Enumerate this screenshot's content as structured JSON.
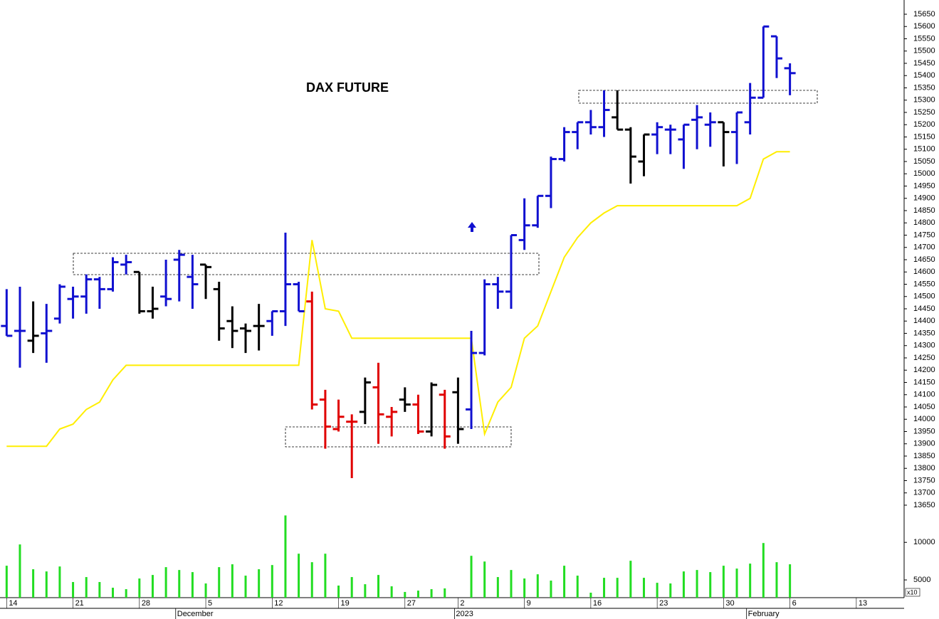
{
  "chart_data": {
    "type": "ohlc",
    "title": "DAX FUTURE",
    "xlim": [
      -0.5,
      67.6
    ],
    "xticks": [
      {
        "value": 0,
        "label": "14"
      },
      {
        "value": 5,
        "label": "21"
      },
      {
        "value": 10,
        "label": "28"
      },
      {
        "value": 15,
        "label": "5"
      },
      {
        "value": 20,
        "label": "12"
      },
      {
        "value": 25,
        "label": "19"
      },
      {
        "value": 30,
        "label": "27"
      },
      {
        "value": 34,
        "label": "2"
      },
      {
        "value": 39,
        "label": "9"
      },
      {
        "value": 44,
        "label": "16"
      },
      {
        "value": 49,
        "label": "23"
      },
      {
        "value": 54,
        "label": "30"
      },
      {
        "value": 59,
        "label": "6"
      },
      {
        "value": 64,
        "label": "13"
      }
    ],
    "months": [
      {
        "value": 13,
        "label": "December"
      },
      {
        "value": 34,
        "label": "2023"
      },
      {
        "value": 56,
        "label": "February"
      }
    ],
    "ylim": [
      13600,
      15700
    ],
    "yticks": [
      13650,
      13700,
      13750,
      13800,
      13850,
      13900,
      13950,
      14000,
      14050,
      14100,
      14150,
      14200,
      14250,
      14300,
      14350,
      14400,
      14450,
      14500,
      14550,
      14600,
      14650,
      14700,
      14750,
      14800,
      14850,
      14900,
      14950,
      15000,
      15050,
      15100,
      15150,
      15200,
      15250,
      15300,
      15350,
      15400,
      15450,
      15500,
      15550,
      15600,
      15650
    ],
    "open": [
      14380,
      14360,
      14320,
      14350,
      14410,
      14490,
      14500,
      14570,
      14530,
      14630,
      14600,
      14440,
      14500,
      14650,
      14580,
      14630,
      14530,
      14400,
      14370,
      14380,
      14400,
      14440,
      14550,
      14480,
      14080,
      13960,
      13990,
      14030,
      14130,
      14010,
      14080,
      14060,
      13950,
      14100,
      14110,
      14040,
      14270,
      14550,
      14520,
      14730,
      14790,
      14910,
      15060,
      15170,
      15210,
      15190,
      15230,
      15180,
      15050,
      15160,
      15180,
      15140,
      15220,
      15200,
      15210,
      15170,
      15210,
      15310,
      15560,
      15430
    ],
    "high": [
      14530,
      14540,
      14480,
      14470,
      14550,
      14540,
      14590,
      14580,
      14660,
      14670,
      14600,
      14540,
      14650,
      14690,
      14670,
      14630,
      14560,
      14460,
      14390,
      14470,
      14440,
      14760,
      14560,
      14520,
      14120,
      14080,
      14020,
      14170,
      14230,
      14050,
      14130,
      14100,
      14150,
      14120,
      14170,
      14360,
      14570,
      14580,
      14750,
      14900,
      14910,
      15070,
      15190,
      15210,
      15260,
      15340,
      15340,
      15190,
      15160,
      15210,
      15200,
      15200,
      15280,
      15250,
      15210,
      15250,
      15370,
      15600,
      15560,
      15450
    ],
    "low": [
      14340,
      14210,
      14270,
      14230,
      14390,
      14410,
      14430,
      14450,
      14520,
      14590,
      14430,
      14410,
      14460,
      14480,
      14450,
      14490,
      14320,
      14290,
      14270,
      14280,
      14340,
      14380,
      14440,
      14040,
      13880,
      13950,
      13760,
      13980,
      13900,
      13930,
      14030,
      13940,
      13930,
      13880,
      13900,
      13960,
      14260,
      14450,
      14450,
      14690,
      14780,
      14860,
      15050,
      15100,
      15160,
      15150,
      15180,
      14960,
      14990,
      15080,
      15080,
      15020,
      15100,
      15110,
      15030,
      15040,
      15160,
      15310,
      15390,
      15320
    ],
    "close": [
      14340,
      14360,
      14340,
      14360,
      14540,
      14500,
      14570,
      14530,
      14640,
      14640,
      14440,
      14450,
      14490,
      14670,
      14550,
      14620,
      14370,
      14360,
      14360,
      14380,
      14440,
      14550,
      14440,
      14060,
      13970,
      14010,
      13990,
      14150,
      14020,
      14030,
      14060,
      13950,
      14140,
      13930,
      13960,
      14270,
      14550,
      14520,
      14750,
      14790,
      14910,
      15060,
      15170,
      15210,
      15190,
      15260,
      15180,
      15070,
      15160,
      15190,
      15180,
      15200,
      15230,
      15210,
      15170,
      15250,
      15310,
      15600,
      15470,
      15410
    ],
    "bar_colors": [
      "#1010d0",
      "#1010d0",
      "#000000",
      "#1010d0",
      "#1010d0",
      "#1010d0",
      "#1010d0",
      "#1010d0",
      "#1010d0",
      "#1010d0",
      "#000000",
      "#000000",
      "#1010d0",
      "#1010d0",
      "#1010d0",
      "#000000",
      "#000000",
      "#000000",
      "#000000",
      "#000000",
      "#1010d0",
      "#1010d0",
      "#1010d0",
      "#e00000",
      "#e00000",
      "#e00000",
      "#e00000",
      "#000000",
      "#e00000",
      "#e00000",
      "#000000",
      "#e00000",
      "#000000",
      "#e00000",
      "#000000",
      "#1010d0",
      "#1010d0",
      "#1010d0",
      "#1010d0",
      "#1010d0",
      "#1010d0",
      "#1010d0",
      "#1010d0",
      "#1010d0",
      "#1010d0",
      "#1010d0",
      "#000000",
      "#000000",
      "#000000",
      "#1010d0",
      "#1010d0",
      "#1010d0",
      "#1010d0",
      "#1010d0",
      "#000000",
      "#1010d0",
      "#1010d0",
      "#1010d0",
      "#1010d0",
      "#1010d0"
    ],
    "line": {
      "color": "#ffee00",
      "values": [
        13890,
        13890,
        13890,
        13890,
        13960,
        13980,
        14040,
        14070,
        14160,
        14220,
        14220,
        14220,
        14220,
        14220,
        14220,
        14220,
        14220,
        14220,
        14220,
        14220,
        14220,
        14220,
        14220,
        14730,
        14450,
        14440,
        14330,
        14330,
        14330,
        14330,
        14330,
        14330,
        14330,
        14330,
        14330,
        14330,
        13940,
        14070,
        14130,
        14330,
        14380,
        14520,
        14660,
        14740,
        14800,
        14840,
        14870,
        14870,
        14870,
        14870,
        14870,
        14870,
        14870,
        14870,
        14870,
        14870,
        14900,
        15060,
        15090,
        15090
      ]
    },
    "volume": {
      "color": "#22dd22",
      "ylim": [
        2640,
        14000
      ],
      "yticks": [
        5000,
        10000
      ],
      "unit_label": "x10",
      "values": [
        6890,
        9720,
        6420,
        6130,
        6790,
        4720,
        5380,
        4720,
        3960,
        3770,
        5190,
        5660,
        6700,
        6320,
        6040,
        4530,
        6700,
        7080,
        5570,
        6420,
        6980,
        13580,
        8490,
        7360,
        8490,
        4250,
        5380,
        4430,
        5660,
        4150,
        3400,
        3580,
        3770,
        3870,
        null,
        8210,
        7450,
        5380,
        6320,
        5190,
        5750,
        4910,
        6890,
        5570,
        3300,
        5280,
        5280,
        7550,
        5280,
        4620,
        4530,
        6130,
        6320,
        6040,
        6890,
        6510,
        7170,
        9910,
        7360,
        7080
      ]
    }
  }
}
